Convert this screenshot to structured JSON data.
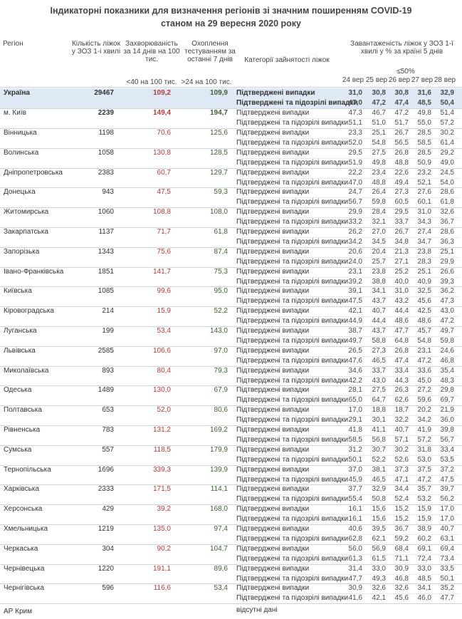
{
  "header": {
    "title": "Індикаторні показники для визначення регіонів зі значним поширенням COVID-19",
    "subtitle": "станом на 29 вересня 2020 року"
  },
  "table": {
    "columns": [
      "Регіон",
      "Кількість ліжок у ЗОЗ 1-і хвилі",
      "Захворюваність за 14 днів на 100 тис.",
      "Охоплення тестуванням за останні 7 днів",
      "Категорії зайнятості ліжок",
      "Завантаженість ліжок у ЗОЗ 1-ї хвилі у % за країні 5 днів"
    ],
    "thresholds": [
      "<40 на 100 тис.",
      ">24 на 100 тис.",
      "≤50%"
    ],
    "dates": [
      "24 вер",
      "25 вер",
      "26 вер",
      "27 вер",
      "28 вер"
    ],
    "categories": [
      "Підтверджені випадки",
      "Підтверджені та підозрілі випадки"
    ],
    "rows": [
      {
        "region": "Україна",
        "beds": "29467",
        "incidence": "109,2",
        "testing": "109,9",
        "confirmed": [
          "31,0",
          "30,8",
          "30,8",
          "31,6",
          "32,9"
        ],
        "suspected": [
          "47,0",
          "47,2",
          "47,4",
          "48,5",
          "50,4"
        ]
      },
      {
        "region": "м. Київ",
        "beds": "2239",
        "incidence": "149,4",
        "testing": "194,7",
        "confirmed": [
          "47,3",
          "46,7",
          "47,2",
          "49,8",
          "51,4"
        ],
        "suspected": [
          "51,1",
          "51,0",
          "51,7",
          "55,0",
          "57,2"
        ]
      },
      {
        "region": "Вінницька",
        "beds": "1198",
        "incidence": "70,6",
        "testing": "125,6",
        "confirmed": [
          "23,3",
          "25,1",
          "26,7",
          "28,5",
          "30,2"
        ],
        "suspected": [
          "52,0",
          "54,8",
          "56,5",
          "58,5",
          "61,4"
        ]
      },
      {
        "region": "Волинська",
        "beds": "1058",
        "incidence": "130,8",
        "testing": "128,5",
        "confirmed": [
          "29,5",
          "27,5",
          "26,8",
          "28,5",
          "29,2"
        ],
        "suspected": [
          "51,9",
          "49,8",
          "48,8",
          "50,9",
          "49,0"
        ]
      },
      {
        "region": "Дніпропетровська",
        "beds": "2383",
        "incidence": "60,7",
        "testing": "129,7",
        "confirmed": [
          "22,2",
          "23,4",
          "22,6",
          "23,2",
          "24,5"
        ],
        "suspected": [
          "47,0",
          "48,8",
          "49,4",
          "52,1",
          "54,0"
        ]
      },
      {
        "region": "Донецька",
        "beds": "943",
        "incidence": "47,5",
        "testing": "59,3",
        "confirmed": [
          "24,7",
          "26,4",
          "27,3",
          "27,6",
          "28,6"
        ],
        "suspected": [
          "56,7",
          "59,8",
          "60,5",
          "60,1",
          "61,8"
        ]
      },
      {
        "region": "Житомирська",
        "beds": "1060",
        "incidence": "108,8",
        "testing": "108,0",
        "confirmed": [
          "29,9",
          "28,4",
          "29,5",
          "31,0",
          "32,6"
        ],
        "suspected": [
          "33,2",
          "32,1",
          "33,7",
          "34,3",
          "36,7"
        ]
      },
      {
        "region": "Закарпатська",
        "beds": "1137",
        "incidence": "71,7",
        "testing": "61,8",
        "confirmed": [
          "26,2",
          "27,0",
          "26,7",
          "27,4",
          "28,6"
        ],
        "suspected": [
          "34,2",
          "34,5",
          "34,8",
          "34,7",
          "36,3"
        ]
      },
      {
        "region": "Запорізька",
        "beds": "1343",
        "incidence": "75,6",
        "testing": "87,4",
        "confirmed": [
          "20,6",
          "20,4",
          "21,3",
          "23,8",
          "25,1"
        ],
        "suspected": [
          "24,0",
          "25,7",
          "27,1",
          "28,3",
          "29,9"
        ]
      },
      {
        "region": "Івано-Франківська",
        "beds": "1851",
        "incidence": "141,7",
        "testing": "75,3",
        "confirmed": [
          "23,1",
          "23,8",
          "25,2",
          "25,1",
          "26,6"
        ],
        "suspected": [
          "39,2",
          "38,8",
          "40,0",
          "40,9",
          "39,3"
        ]
      },
      {
        "region": "Київська",
        "beds": "1085",
        "incidence": "99,6",
        "testing": "95,0",
        "confirmed": [
          "39,1",
          "34,1",
          "31,0",
          "32,5",
          "36,2"
        ],
        "suspected": [
          "47,5",
          "43,7",
          "43,2",
          "45,6",
          "47,3"
        ]
      },
      {
        "region": "Кіровоградська",
        "beds": "214",
        "incidence": "15,9",
        "testing": "52,2",
        "confirmed": [
          "42,1",
          "40,7",
          "44,4",
          "42,5",
          "43,0"
        ],
        "suspected": [
          "44,9",
          "44,4",
          "48,6",
          "48,6",
          "47,2"
        ]
      },
      {
        "region": "Луганська",
        "beds": "199",
        "incidence": "53,4",
        "testing": "143,0",
        "confirmed": [
          "38,7",
          "43,7",
          "47,7",
          "45,7",
          "49,7"
        ],
        "suspected": [
          "49,7",
          "58,8",
          "64,8",
          "54,8",
          "59,8"
        ]
      },
      {
        "region": "Львівська",
        "beds": "2585",
        "incidence": "106,6",
        "testing": "97,0",
        "confirmed": [
          "26,5",
          "27,3",
          "26,8",
          "23,1",
          "24,6"
        ],
        "suspected": [
          "47,6",
          "46,5",
          "47,4",
          "47,2",
          "46,8"
        ]
      },
      {
        "region": "Миколаївська",
        "beds": "893",
        "incidence": "80,4",
        "testing": "79,3",
        "confirmed": [
          "34,6",
          "33,7",
          "33,4",
          "33,6",
          "35,4"
        ],
        "suspected": [
          "42,2",
          "43,0",
          "44,3",
          "45,0",
          "48,3"
        ]
      },
      {
        "region": "Одеська",
        "beds": "1489",
        "incidence": "130,0",
        "testing": "67,9",
        "confirmed": [
          "28,1",
          "27,5",
          "26,3",
          "27,2",
          "29,8"
        ],
        "suspected": [
          "65,0",
          "64,7",
          "62,6",
          "59,6",
          "69,7"
        ]
      },
      {
        "region": "Полтавська",
        "beds": "653",
        "incidence": "52,0",
        "testing": "80,6",
        "confirmed": [
          "17,0",
          "18,8",
          "18,7",
          "20,2",
          "21,9"
        ],
        "suspected": [
          "29,1",
          "30,1",
          "32,2",
          "34,2",
          "36,0"
        ]
      },
      {
        "region": "Рівненська",
        "beds": "783",
        "incidence": "131,2",
        "testing": "169,2",
        "confirmed": [
          "41,8",
          "41,1",
          "40,7",
          "41,9",
          "39,8"
        ],
        "suspected": [
          "58,5",
          "56,8",
          "57,1",
          "57,2",
          "56,7"
        ]
      },
      {
        "region": "Сумська",
        "beds": "557",
        "incidence": "118,5",
        "testing": "179,9",
        "confirmed": [
          "31,2",
          "30,7",
          "30,2",
          "31,8",
          "33,4"
        ],
        "suspected": [
          "50,1",
          "52,2",
          "52,6",
          "53,0",
          "53,5"
        ]
      },
      {
        "region": "Тернопільська",
        "beds": "1696",
        "incidence": "339,3",
        "testing": "139,9",
        "confirmed": [
          "37,0",
          "38,1",
          "37,3",
          "37,5",
          "37,2"
        ],
        "suspected": [
          "45,9",
          "46,5",
          "47,1",
          "47,2",
          "47,5"
        ]
      },
      {
        "region": "Харківська",
        "beds": "2333",
        "incidence": "171,5",
        "testing": "114,1",
        "confirmed": [
          "37,7",
          "32,9",
          "34,4",
          "35,7",
          "39,7"
        ],
        "suspected": [
          "55,4",
          "50,8",
          "52,4",
          "53,2",
          "56,2"
        ]
      },
      {
        "region": "Херсонська",
        "beds": "429",
        "incidence": "39,2",
        "testing": "168,0",
        "confirmed": [
          "16,1",
          "15,6",
          "15,2",
          "15,9",
          "17,0"
        ],
        "suspected": [
          "16,1",
          "15,6",
          "15,2",
          "15,9",
          "17,0"
        ]
      },
      {
        "region": "Хмельницька",
        "beds": "1219",
        "incidence": "135,0",
        "testing": "97,4",
        "confirmed": [
          "40,6",
          "39,5",
          "36,7",
          "38,9",
          "40,7"
        ],
        "suspected": [
          "62,8",
          "62,1",
          "59,2",
          "60,2",
          "63,1"
        ]
      },
      {
        "region": "Черкаська",
        "beds": "304",
        "incidence": "90,2",
        "testing": "104,7",
        "confirmed": [
          "56,0",
          "56,9",
          "68,4",
          "69,1",
          "69,4"
        ],
        "suspected": [
          "61,3",
          "61,5",
          "71,1",
          "72,4",
          "73,4"
        ]
      },
      {
        "region": "Чернівецька",
        "beds": "1220",
        "incidence": "191,1",
        "testing": "89,6",
        "confirmed": [
          "31,4",
          "33,0",
          "30,9",
          "33,0",
          "33,5"
        ],
        "suspected": [
          "47,7",
          "49,3",
          "46,8",
          "48,5",
          "50,1"
        ]
      },
      {
        "region": "Чернігівська",
        "beds": "596",
        "incidence": "116,6",
        "testing": "53,4",
        "confirmed": [
          "30,9",
          "32,6",
          "32,6",
          "34,1",
          "35,2"
        ],
        "suspected": [
          "41,6",
          "42,1",
          "45,6",
          "46,0",
          "47,7"
        ]
      }
    ],
    "footer": {
      "region": "АР Крим",
      "note": "відсутні дані"
    }
  }
}
